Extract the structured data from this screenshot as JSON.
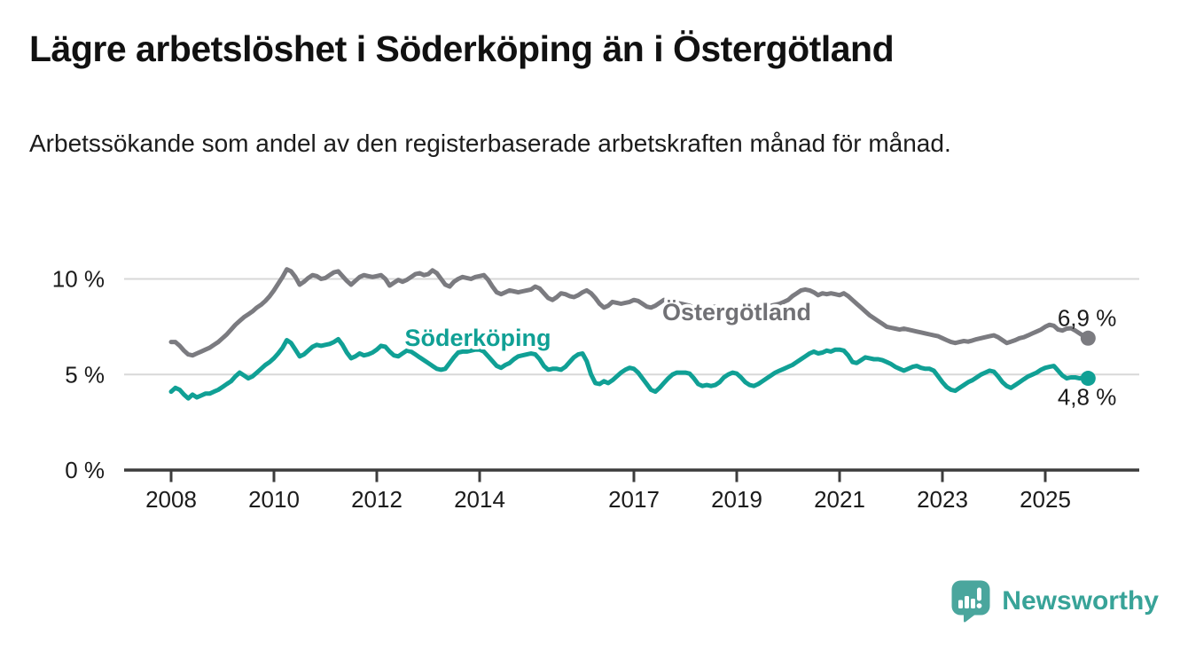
{
  "header": {
    "title": "Lägre arbetslöshet i Söderköping än i Östergötland",
    "subtitle": "Arbetssökande som andel av den registerbaserade arbetskraften månad för månad."
  },
  "footer": {
    "brand": "Newsworthy"
  },
  "chart_data": {
    "type": "line",
    "title": "Lägre arbetslöshet i Söderköping än i Östergötland",
    "subtitle": "Arbetssökande som andel av den registerbaserade arbetskraften månad för månad.",
    "x_unit": "month",
    "x_start": {
      "year": 2008,
      "month": 1
    },
    "x_end": {
      "year": 2025,
      "month": 11
    },
    "ylim": [
      0,
      11.6
    ],
    "grid": "horizontal",
    "legend": "inline-labels",
    "style": {
      "axis": "#3c3c3c",
      "grid": "#d8d8d8",
      "text": "#1b1b1b",
      "background": "#ffffff"
    },
    "yticks": [
      {
        "value": 0,
        "label": "0 %"
      },
      {
        "value": 5,
        "label": "5 %"
      },
      {
        "value": 10,
        "label": "10 %"
      }
    ],
    "xticks": [
      {
        "year": 2008,
        "label": "2008"
      },
      {
        "year": 2010,
        "label": "2010"
      },
      {
        "year": 2012,
        "label": "2012"
      },
      {
        "year": 2014,
        "label": "2014"
      },
      {
        "year": 2017,
        "label": "2017"
      },
      {
        "year": 2019,
        "label": "2019"
      },
      {
        "year": 2021,
        "label": "2021"
      },
      {
        "year": 2023,
        "label": "2023"
      },
      {
        "year": 2025,
        "label": "2025"
      }
    ],
    "series": [
      {
        "id": "ostergotland",
        "name": "Östergötland",
        "color": "#7b7b80",
        "label_color": "#717175",
        "end_label": "6,9 %",
        "end_value": 6.9,
        "values": [
          6.7,
          6.7,
          6.5,
          6.25,
          6.05,
          6.0,
          6.1,
          6.2,
          6.3,
          6.4,
          6.55,
          6.7,
          6.9,
          7.1,
          7.35,
          7.6,
          7.8,
          8.0,
          8.15,
          8.3,
          8.5,
          8.65,
          8.85,
          9.1,
          9.4,
          9.75,
          10.1,
          10.5,
          10.4,
          10.1,
          9.7,
          9.85,
          10.05,
          10.2,
          10.15,
          10.0,
          10.05,
          10.2,
          10.35,
          10.4,
          10.15,
          9.9,
          9.7,
          9.9,
          10.1,
          10.2,
          10.15,
          10.1,
          10.15,
          10.2,
          10.0,
          9.65,
          9.8,
          9.95,
          9.85,
          9.95,
          10.1,
          10.25,
          10.3,
          10.2,
          10.25,
          10.45,
          10.3,
          10.0,
          9.7,
          9.6,
          9.85,
          10.0,
          10.1,
          10.05,
          10.0,
          10.1,
          10.15,
          10.2,
          9.95,
          9.6,
          9.3,
          9.2,
          9.3,
          9.4,
          9.35,
          9.3,
          9.35,
          9.4,
          9.45,
          9.6,
          9.5,
          9.25,
          9.0,
          8.9,
          9.05,
          9.25,
          9.2,
          9.1,
          9.05,
          9.15,
          9.3,
          9.4,
          9.25,
          9.0,
          8.7,
          8.5,
          8.6,
          8.8,
          8.75,
          8.7,
          8.75,
          8.8,
          8.9,
          8.85,
          8.7,
          8.55,
          8.5,
          8.6,
          8.75,
          8.9,
          8.8,
          8.7,
          8.75,
          8.7,
          8.65,
          8.6,
          8.5,
          8.4,
          8.35,
          8.4,
          8.5,
          8.55,
          8.5,
          8.45,
          8.5,
          8.55,
          8.5,
          8.45,
          8.4,
          8.35,
          8.4,
          8.45,
          8.5,
          8.55,
          8.6,
          8.65,
          8.7,
          8.8,
          8.9,
          9.1,
          9.25,
          9.4,
          9.45,
          9.4,
          9.3,
          9.15,
          9.25,
          9.2,
          9.25,
          9.2,
          9.15,
          9.25,
          9.1,
          8.9,
          8.7,
          8.5,
          8.3,
          8.1,
          7.95,
          7.8,
          7.65,
          7.5,
          7.45,
          7.4,
          7.35,
          7.4,
          7.35,
          7.3,
          7.25,
          7.2,
          7.15,
          7.1,
          7.05,
          7.0,
          6.9,
          6.8,
          6.7,
          6.65,
          6.7,
          6.75,
          6.72,
          6.78,
          6.85,
          6.9,
          6.95,
          7.0,
          7.05,
          6.95,
          6.8,
          6.65,
          6.72,
          6.8,
          6.9,
          6.95,
          7.05,
          7.15,
          7.25,
          7.35,
          7.5,
          7.6,
          7.55,
          7.35,
          7.3,
          7.4,
          7.42,
          7.3,
          7.15,
          7.0,
          6.9
        ]
      },
      {
        "id": "soderkoping",
        "name": "Söderköping",
        "color": "#10a095",
        "label_color": "#10a095",
        "end_label": "4,8 %",
        "end_value": 4.8,
        "values": [
          4.1,
          4.3,
          4.2,
          3.95,
          3.75,
          3.95,
          3.8,
          3.9,
          4.0,
          4.0,
          4.1,
          4.2,
          4.35,
          4.5,
          4.65,
          4.9,
          5.1,
          4.95,
          4.8,
          4.9,
          5.1,
          5.3,
          5.5,
          5.65,
          5.85,
          6.1,
          6.4,
          6.8,
          6.65,
          6.3,
          5.95,
          6.05,
          6.25,
          6.45,
          6.55,
          6.5,
          6.55,
          6.6,
          6.7,
          6.85,
          6.55,
          6.15,
          5.85,
          5.95,
          6.1,
          6.0,
          6.05,
          6.15,
          6.3,
          6.5,
          6.45,
          6.2,
          6.0,
          5.95,
          6.1,
          6.25,
          6.2,
          6.05,
          5.9,
          5.75,
          5.6,
          5.45,
          5.3,
          5.25,
          5.3,
          5.6,
          5.9,
          6.15,
          6.2,
          6.2,
          6.25,
          6.3,
          6.3,
          6.2,
          5.95,
          5.7,
          5.45,
          5.35,
          5.5,
          5.6,
          5.8,
          5.95,
          6.0,
          6.05,
          6.1,
          6.05,
          5.8,
          5.45,
          5.25,
          5.3,
          5.3,
          5.25,
          5.4,
          5.65,
          5.9,
          6.05,
          6.1,
          5.7,
          5.0,
          4.55,
          4.5,
          4.65,
          4.55,
          4.7,
          4.9,
          5.1,
          5.25,
          5.35,
          5.3,
          5.1,
          4.8,
          4.5,
          4.2,
          4.1,
          4.3,
          4.55,
          4.8,
          5.0,
          5.1,
          5.1,
          5.1,
          5.05,
          4.8,
          4.5,
          4.4,
          4.45,
          4.4,
          4.45,
          4.6,
          4.85,
          5.0,
          5.1,
          5.05,
          4.85,
          4.6,
          4.45,
          4.4,
          4.5,
          4.65,
          4.8,
          4.95,
          5.1,
          5.2,
          5.3,
          5.4,
          5.5,
          5.65,
          5.8,
          5.95,
          6.1,
          6.2,
          6.1,
          6.15,
          6.25,
          6.2,
          6.3,
          6.3,
          6.25,
          6.0,
          5.65,
          5.6,
          5.75,
          5.9,
          5.85,
          5.8,
          5.8,
          5.75,
          5.65,
          5.55,
          5.4,
          5.3,
          5.2,
          5.3,
          5.4,
          5.45,
          5.35,
          5.3,
          5.3,
          5.2,
          4.9,
          4.6,
          4.35,
          4.2,
          4.15,
          4.3,
          4.45,
          4.6,
          4.7,
          4.85,
          5.0,
          5.1,
          5.2,
          5.15,
          4.9,
          4.6,
          4.4,
          4.3,
          4.45,
          4.6,
          4.75,
          4.9,
          5.0,
          5.1,
          5.25,
          5.35,
          5.4,
          5.45,
          5.2,
          4.95,
          4.8,
          4.85,
          4.85,
          4.8,
          4.85,
          4.8
        ]
      }
    ]
  }
}
